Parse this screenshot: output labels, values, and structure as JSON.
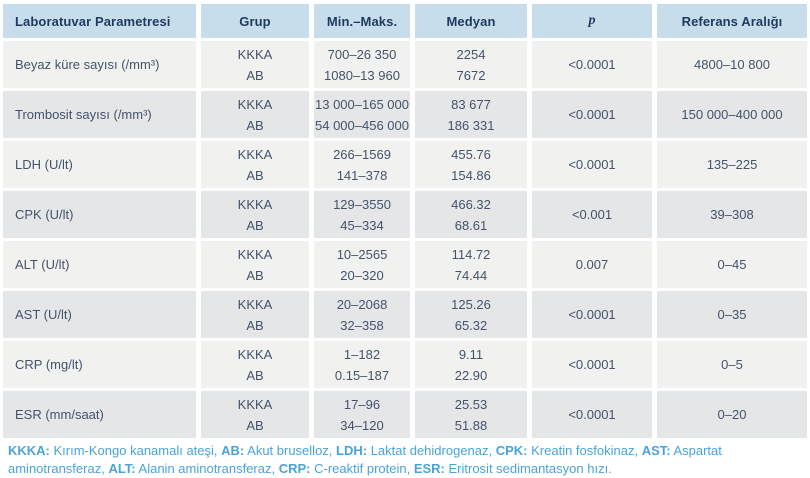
{
  "table": {
    "columns": [
      {
        "label": "Laboratuvar Parametresi"
      },
      {
        "label": "Grup"
      },
      {
        "label": "Min.–Maks."
      },
      {
        "label": "Medyan"
      },
      {
        "label": "p"
      },
      {
        "label": "Referans Aralığı"
      }
    ],
    "rows": [
      {
        "parameter": "Beyaz küre sayısı (/mm³)",
        "groups": [
          "KKKA",
          "AB"
        ],
        "min_max": [
          "700–26 350",
          "1080–13 960"
        ],
        "median": [
          "2254",
          "7672"
        ],
        "p": "<0.0001",
        "reference": "4800–10 800"
      },
      {
        "parameter": "Trombosit sayısı (/mm³)",
        "groups": [
          "KKKA",
          "AB"
        ],
        "min_max": [
          "13 000–165 000",
          "54 000–456 000"
        ],
        "median": [
          "83 677",
          "186 331"
        ],
        "p": "<0.0001",
        "reference": "150 000–400 000"
      },
      {
        "parameter": "LDH (U/lt)",
        "groups": [
          "KKKA",
          "AB"
        ],
        "min_max": [
          "266–1569",
          "141–378"
        ],
        "median": [
          "455.76",
          "154.86"
        ],
        "p": "<0.0001",
        "reference": "135–225"
      },
      {
        "parameter": "CPK (U/lt)",
        "groups": [
          "KKKA",
          "AB"
        ],
        "min_max": [
          "129–3550",
          "45–334"
        ],
        "median": [
          "466.32",
          "68.61"
        ],
        "p": "<0.001",
        "reference": "39–308"
      },
      {
        "parameter": "ALT (U/lt)",
        "groups": [
          "KKKA",
          "AB"
        ],
        "min_max": [
          "10–2565",
          "20–320"
        ],
        "median": [
          "114.72",
          "74.44"
        ],
        "p": "0.007",
        "reference": "0–45"
      },
      {
        "parameter": "AST (U/lt)",
        "groups": [
          "KKKA",
          "AB"
        ],
        "min_max": [
          "20–2068",
          "32–358"
        ],
        "median": [
          "125.26",
          "65.32"
        ],
        "p": "<0.0001",
        "reference": "0–35"
      },
      {
        "parameter": "CRP (mg/lt)",
        "groups": [
          "KKKA",
          "AB"
        ],
        "min_max": [
          "1–182",
          "0.15–187"
        ],
        "median": [
          "9.11",
          "22.90"
        ],
        "p": "<0.0001",
        "reference": "0–5"
      },
      {
        "parameter": "ESR (mm/saat)",
        "groups": [
          "KKKA",
          "AB"
        ],
        "min_max": [
          "17–96",
          "34–120"
        ],
        "median": [
          "25.53",
          "51.88"
        ],
        "p": "<0.0001",
        "reference": "0–20"
      }
    ]
  },
  "footnote": {
    "entries": [
      {
        "abbr": "KKKA:",
        "text": "Kırım-Kongo kanamalı ateşi"
      },
      {
        "abbr": "AB:",
        "text": "Akut bruselloz"
      },
      {
        "abbr": "LDH:",
        "text": "Laktat dehidrogenaz"
      },
      {
        "abbr": "CPK:",
        "text": "Kreatin fosfokinaz"
      },
      {
        "abbr": "AST:",
        "text": "Aspartat aminotransferaz"
      },
      {
        "abbr": "ALT:",
        "text": "Alanin aminotransferaz"
      },
      {
        "abbr": "CRP:",
        "text": "C-reaktif protein"
      },
      {
        "abbr": "ESR:",
        "text": "Eritrosit sedimantasyon hızı"
      }
    ],
    "separator": ", ",
    "terminator": "."
  },
  "colors": {
    "header_bg": "#c8ddec",
    "header_text": "#1e3a5f",
    "row_bg_light": "#f1f1f0",
    "row_bg_dark": "#e5e6e8",
    "body_text": "#44536a",
    "footnote_text": "#4aa3d9"
  }
}
